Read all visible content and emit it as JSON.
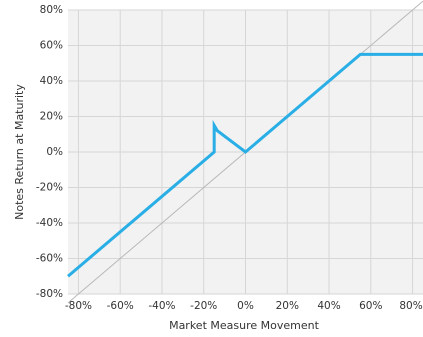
{
  "chart_data": {
    "type": "line",
    "title": "",
    "xlabel": "Market Measure Movement",
    "ylabel": "Notes Return at Maturity",
    "xlim": [
      -85,
      85
    ],
    "ylim": [
      -80,
      80
    ],
    "x_ticks": [
      -80,
      -60,
      -40,
      -20,
      0,
      20,
      40,
      60,
      80
    ],
    "x_tick_labels": [
      "-80%",
      "-60%",
      "-40%",
      "-20%",
      "0%",
      "20%",
      "40%",
      "60%",
      "80%"
    ],
    "y_ticks": [
      -80,
      -60,
      -40,
      -20,
      0,
      20,
      40,
      60,
      80
    ],
    "y_tick_labels": [
      "-80%",
      "-60%",
      "-40%",
      "-20%",
      "0%",
      "20%",
      "40%",
      "60%",
      "80%"
    ],
    "grid": true,
    "legend": "none",
    "series": [
      {
        "color": "#29aee6",
        "points": [
          [
            -85,
            -70
          ],
          [
            -15,
            0
          ],
          [
            -15,
            15
          ],
          [
            -13.5,
            12
          ],
          [
            0,
            0
          ],
          [
            55,
            55
          ],
          [
            85,
            55
          ]
        ]
      },
      {
        "color": "#b8b8b8",
        "points": [
          [
            -85,
            -85
          ],
          [
            85,
            85
          ]
        ]
      }
    ]
  }
}
